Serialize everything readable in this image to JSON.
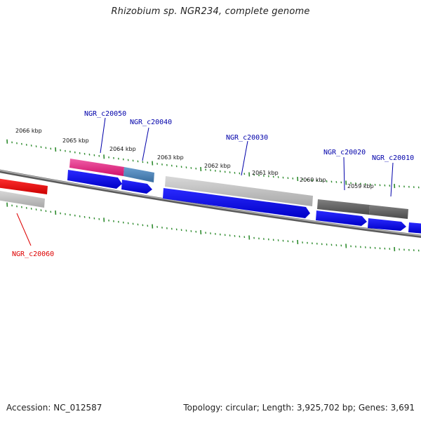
{
  "title": "Rhizobium sp. NGR234, complete genome",
  "footer": {
    "accession": "Accession: NC_012587",
    "summary": "Topology: circular; Length: 3,925,702 bp; Genes: 3,691"
  },
  "scale_labels": [
    "2066 kbp",
    "2065 kbp",
    "2064 kbp",
    "2063 kbp",
    "2062 kbp",
    "2061 kbp",
    "2060 kbp",
    "2059 kbp"
  ],
  "genes": [
    {
      "name": "NGR_c20060",
      "color": "#dd0000"
    },
    {
      "name": "NGR_c20050",
      "color": "#0000aa"
    },
    {
      "name": "NGR_c20040",
      "color": "#0000aa"
    },
    {
      "name": "NGR_c20030",
      "color": "#0000aa"
    },
    {
      "name": "NGR_c20020",
      "color": "#0000aa"
    },
    {
      "name": "NGR_c20010",
      "color": "#0000aa"
    }
  ],
  "colors": {
    "backbone": "#8a8a8a",
    "tick": "#2e8b2e",
    "cds_strand": "#0000ee",
    "pink": "#e8207a",
    "steel": "#4a7fb5",
    "light_gray": "#bdbdbd",
    "dark_gray": "#5f5f5f",
    "red": "#ee0000"
  }
}
